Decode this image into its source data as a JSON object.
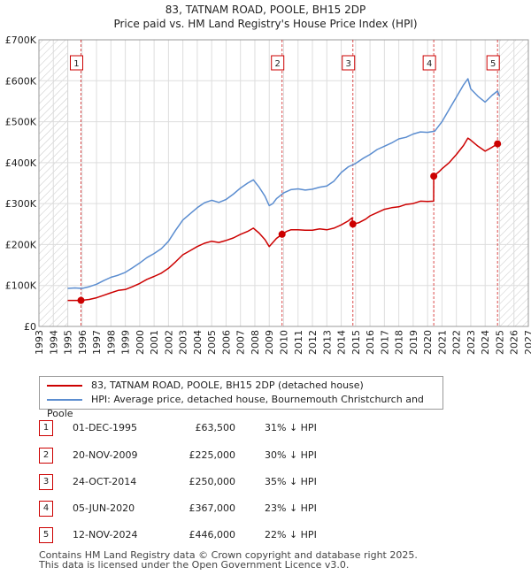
{
  "header": {
    "title": "83, TATNAM ROAD, POOLE, BH15 2DP",
    "subtitle": "Price paid vs. HM Land Registry's House Price Index (HPI)"
  },
  "chart_data": {
    "type": "line",
    "title": "83, TATNAM ROAD, POOLE, BH15 2DP",
    "subtitle": "Price paid vs. HM Land Registry's House Price Index (HPI)",
    "xlim": [
      1993,
      2027
    ],
    "ylim": [
      0,
      700000
    ],
    "x_ticks": [
      1993,
      1994,
      1995,
      1996,
      1997,
      1998,
      1999,
      2000,
      2001,
      2002,
      2003,
      2004,
      2005,
      2006,
      2007,
      2008,
      2009,
      2010,
      2011,
      2012,
      2013,
      2014,
      2015,
      2016,
      2017,
      2018,
      2019,
      2020,
      2021,
      2022,
      2023,
      2024,
      2025,
      2026,
      2027
    ],
    "y_ticks": [
      {
        "value": 0,
        "label": "£0"
      },
      {
        "value": 100000,
        "label": "£100K"
      },
      {
        "value": 200000,
        "label": "£200K"
      },
      {
        "value": 300000,
        "label": "£300K"
      },
      {
        "value": 400000,
        "label": "£400K"
      },
      {
        "value": 500000,
        "label": "£500K"
      },
      {
        "value": 600000,
        "label": "£600K"
      },
      {
        "value": 700000,
        "label": "£700K"
      }
    ],
    "grid": true,
    "hatched_ranges": [
      [
        1993,
        1995.0
      ],
      [
        2025.0,
        2027
      ]
    ],
    "series": [
      {
        "name": "83, TATNAM ROAD, POOLE, BH15 2DP (detached house)",
        "color": "#cc0000",
        "x": [
          1995.0,
          1995.92,
          1996.5,
          1997.0,
          1997.5,
          1998.0,
          1998.5,
          1999.0,
          1999.5,
          2000.0,
          2000.5,
          2001.0,
          2001.5,
          2002.0,
          2002.5,
          2003.0,
          2003.5,
          2004.0,
          2004.5,
          2005.0,
          2005.5,
          2006.0,
          2006.5,
          2007.0,
          2007.5,
          2007.9,
          2008.3,
          2008.7,
          2009.0,
          2009.25,
          2009.5,
          2009.89,
          2010.2,
          2010.5,
          2011.0,
          2011.5,
          2012.0,
          2012.5,
          2013.0,
          2013.5,
          2014.0,
          2014.5,
          2014.75,
          2014.81,
          2015.2,
          2015.7,
          2016.0,
          2016.5,
          2017.0,
          2017.5,
          2018.0,
          2018.5,
          2019.0,
          2019.5,
          2020.0,
          2020.42,
          2020.43,
          2020.8,
          2021.0,
          2021.5,
          2022.0,
          2022.5,
          2022.8,
          2023.0,
          2023.5,
          2024.0,
          2024.5,
          2024.86,
          2025.0
        ],
        "y": [
          63500,
          63500,
          66000,
          70000,
          76000,
          82000,
          88000,
          90000,
          97000,
          105000,
          115000,
          122000,
          130000,
          142000,
          158000,
          175000,
          185000,
          195000,
          203000,
          208000,
          205000,
          210000,
          216000,
          225000,
          232000,
          240000,
          228000,
          212000,
          195000,
          205000,
          215000,
          225000,
          232000,
          236000,
          236000,
          235000,
          235000,
          238000,
          236000,
          240000,
          248000,
          258000,
          265000,
          250000,
          253000,
          262000,
          270000,
          278000,
          286000,
          290000,
          292000,
          298000,
          300000,
          306000,
          305000,
          306000,
          367000,
          378000,
          385000,
          400000,
          420000,
          442000,
          460000,
          455000,
          440000,
          428000,
          438000,
          446000,
          440000
        ]
      },
      {
        "name": "HPI: Average price, detached house, Bournemouth Christchurch and Poole",
        "color": "#5b8dd0",
        "x": [
          1995.0,
          1995.5,
          1996.0,
          1996.5,
          1997.0,
          1997.5,
          1998.0,
          1998.5,
          1999.0,
          1999.5,
          2000.0,
          2000.5,
          2001.0,
          2001.5,
          2002.0,
          2002.5,
          2003.0,
          2003.5,
          2004.0,
          2004.5,
          2005.0,
          2005.5,
          2006.0,
          2006.5,
          2007.0,
          2007.5,
          2007.9,
          2008.3,
          2008.7,
          2009.0,
          2009.25,
          2009.5,
          2010.0,
          2010.5,
          2011.0,
          2011.5,
          2012.0,
          2012.5,
          2013.0,
          2013.5,
          2014.0,
          2014.5,
          2015.0,
          2015.5,
          2016.0,
          2016.5,
          2017.0,
          2017.5,
          2018.0,
          2018.5,
          2019.0,
          2019.5,
          2020.0,
          2020.5,
          2021.0,
          2021.5,
          2022.0,
          2022.5,
          2022.8,
          2023.0,
          2023.5,
          2024.0,
          2024.5,
          2024.86,
          2025.0
        ],
        "y": [
          93000,
          94000,
          93000,
          97000,
          103000,
          112000,
          120000,
          125000,
          132000,
          143000,
          155000,
          168000,
          178000,
          190000,
          208000,
          235000,
          260000,
          275000,
          290000,
          302000,
          308000,
          303000,
          310000,
          323000,
          338000,
          350000,
          358000,
          340000,
          318000,
          295000,
          300000,
          312000,
          326000,
          334000,
          336000,
          333000,
          335000,
          340000,
          343000,
          355000,
          376000,
          390000,
          398000,
          410000,
          420000,
          432000,
          440000,
          448000,
          458000,
          462000,
          470000,
          475000,
          474000,
          477000,
          500000,
          530000,
          560000,
          590000,
          605000,
          580000,
          562000,
          548000,
          565000,
          575000,
          562000
        ]
      }
    ],
    "transactions": [
      {
        "num": "1",
        "x": 1995.92,
        "y": 63500
      },
      {
        "num": "2",
        "x": 2009.89,
        "y": 225000
      },
      {
        "num": "3",
        "x": 2014.81,
        "y": 250000
      },
      {
        "num": "4",
        "x": 2020.43,
        "y": 367000
      },
      {
        "num": "5",
        "x": 2024.86,
        "y": 446000
      }
    ]
  },
  "legend": {
    "items": [
      {
        "label": "83, TATNAM ROAD, POOLE, BH15 2DP (detached house)",
        "color": "#cc0000"
      },
      {
        "label": "HPI: Average price, detached house, Bournemouth Christchurch and Poole",
        "color": "#5b8dd0"
      }
    ]
  },
  "transactions_table": [
    {
      "num": "1",
      "date": "01-DEC-1995",
      "price": "£63,500",
      "hpi": "31% ↓ HPI"
    },
    {
      "num": "2",
      "date": "20-NOV-2009",
      "price": "£225,000",
      "hpi": "30% ↓ HPI"
    },
    {
      "num": "3",
      "date": "24-OCT-2014",
      "price": "£250,000",
      "hpi": "35% ↓ HPI"
    },
    {
      "num": "4",
      "date": "05-JUN-2020",
      "price": "£367,000",
      "hpi": "23% ↓ HPI"
    },
    {
      "num": "5",
      "date": "12-NOV-2024",
      "price": "£446,000",
      "hpi": "22% ↓ HPI"
    }
  ],
  "footer": {
    "line1": "Contains HM Land Registry data © Crown copyright and database right 2025.",
    "line2": "This data is licensed under the Open Government Licence v3.0."
  }
}
